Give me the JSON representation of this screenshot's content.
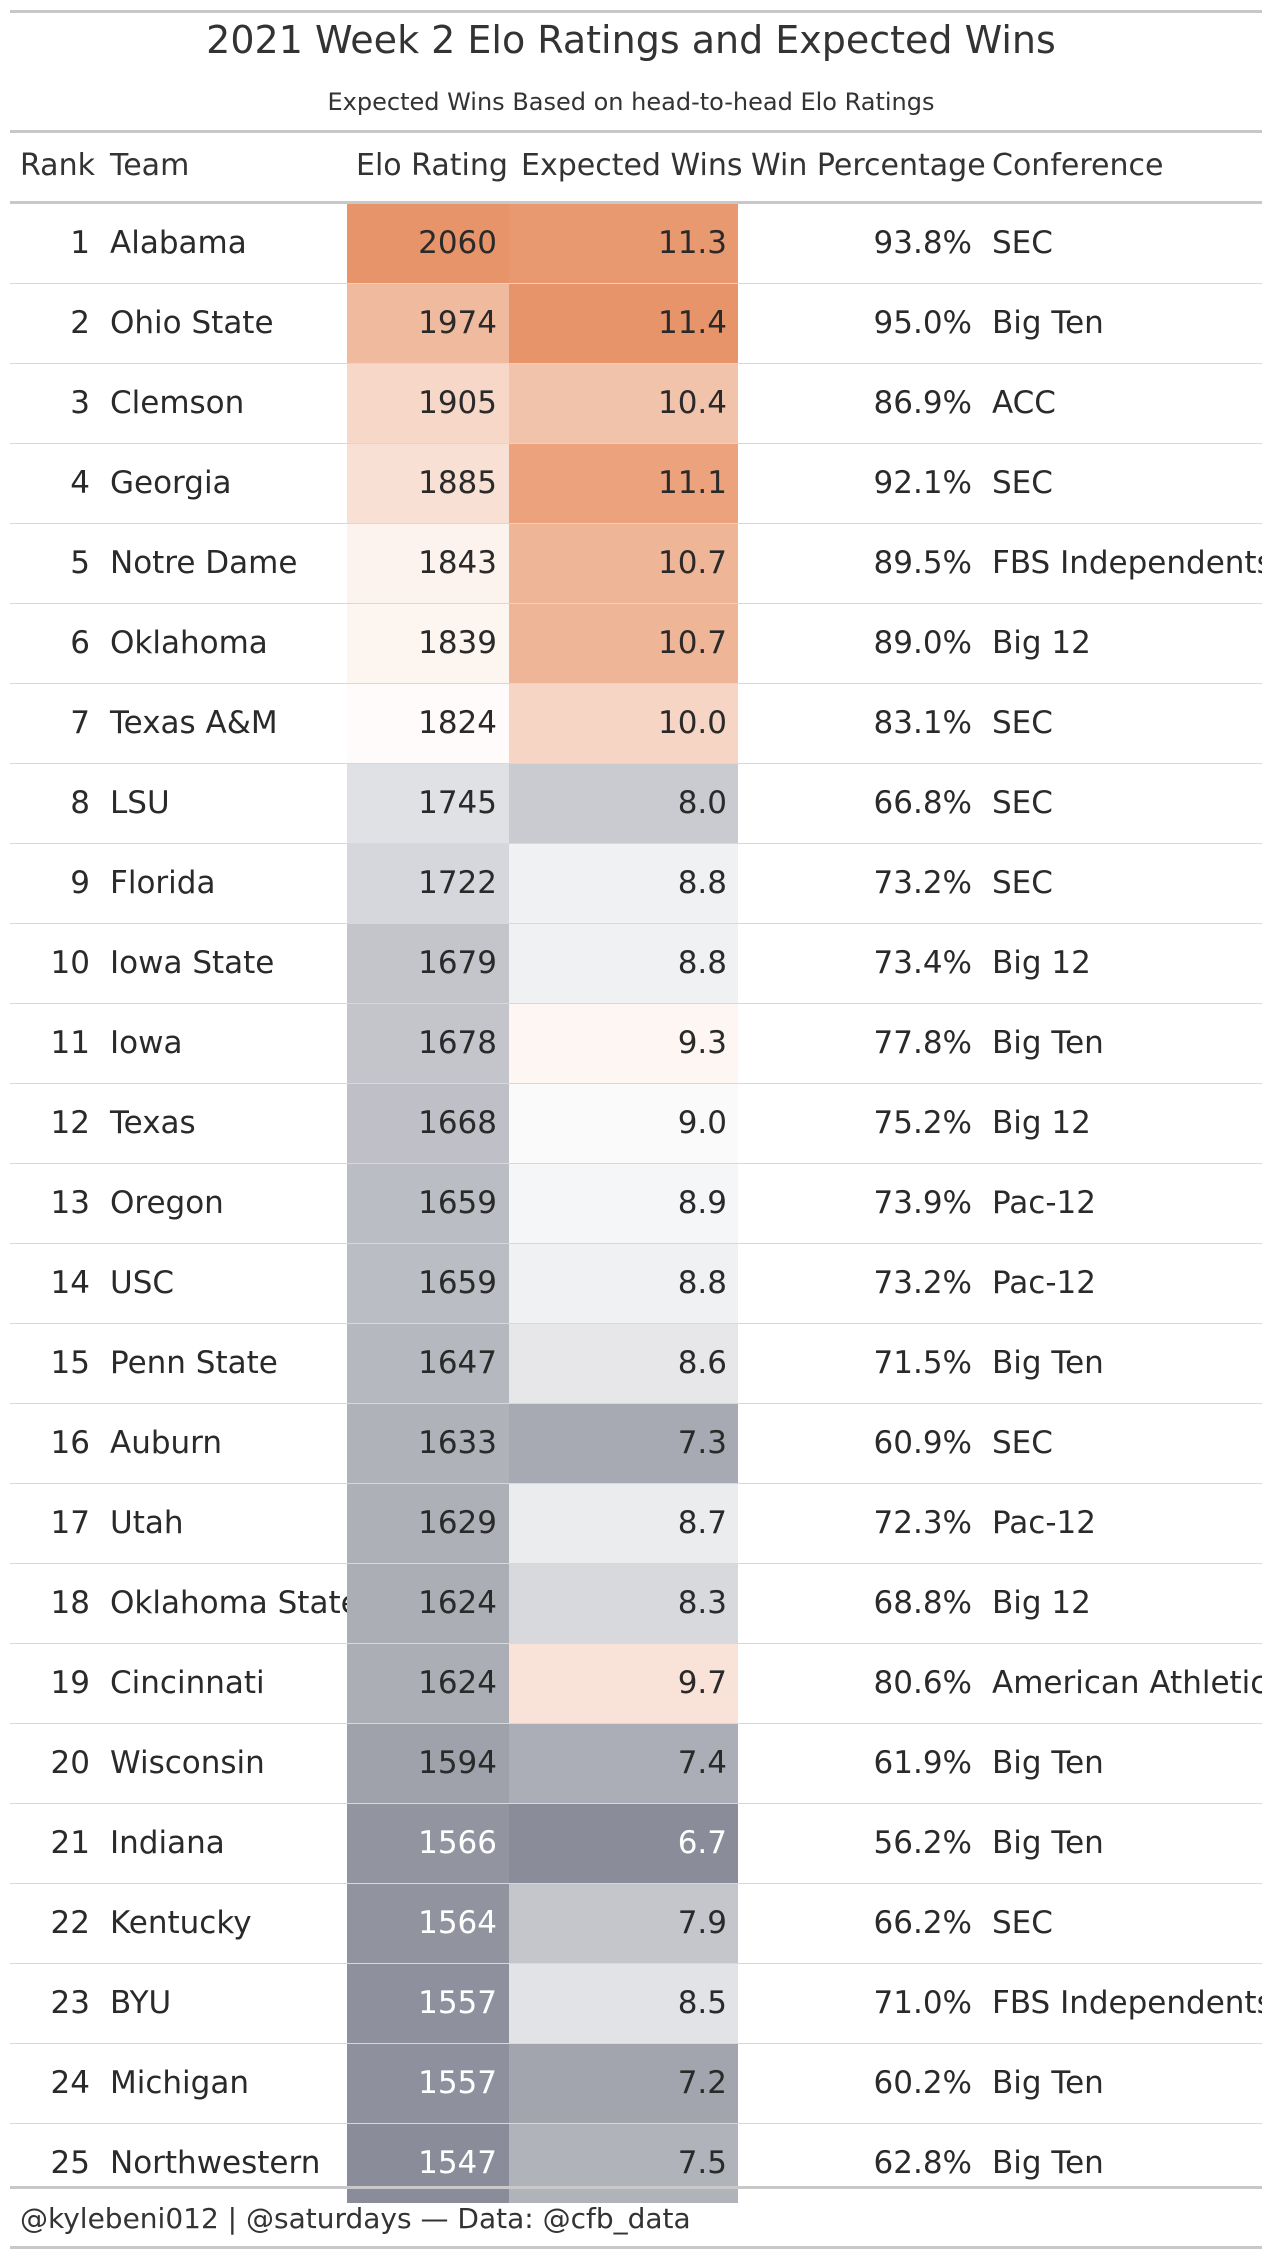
{
  "chart_data": {
    "type": "table",
    "title": "2021 Week 2 Elo Ratings and Expected Wins",
    "subtitle": "Expected Wins Based on head-to-head Elo Ratings",
    "columns": [
      "Rank",
      "Team",
      "Elo Rating",
      "Expected Wins",
      "Win Percentage",
      "Conference"
    ],
    "color_scale": {
      "low": "#8a8d99",
      "mid": "#ffffff",
      "high": "#e8946a",
      "elo_mid": 1815,
      "exp_mid": 9.1
    },
    "rows": [
      {
        "rank": "1",
        "team": "Alabama",
        "elo": 2060,
        "exp": 11.3,
        "exp_text": "11.3",
        "pct": "93.8%",
        "conf": "SEC"
      },
      {
        "rank": "2",
        "team": "Ohio State",
        "elo": 1974,
        "exp": 11.4,
        "exp_text": "11.4",
        "pct": "95.0%",
        "conf": "Big Ten"
      },
      {
        "rank": "3",
        "team": "Clemson",
        "elo": 1905,
        "exp": 10.4,
        "exp_text": "10.4",
        "pct": "86.9%",
        "conf": "ACC"
      },
      {
        "rank": "4",
        "team": "Georgia",
        "elo": 1885,
        "exp": 11.1,
        "exp_text": "11.1",
        "pct": "92.1%",
        "conf": "SEC"
      },
      {
        "rank": "5",
        "team": "Notre Dame",
        "elo": 1843,
        "exp": 10.7,
        "exp_text": "10.7",
        "pct": "89.5%",
        "conf": "FBS Independents"
      },
      {
        "rank": "6",
        "team": "Oklahoma",
        "elo": 1839,
        "exp": 10.7,
        "exp_text": "10.7",
        "pct": "89.0%",
        "conf": "Big 12"
      },
      {
        "rank": "7",
        "team": "Texas A&M",
        "elo": 1824,
        "exp": 10.0,
        "exp_text": "10.0",
        "pct": "83.1%",
        "conf": "SEC"
      },
      {
        "rank": "8",
        "team": "LSU",
        "elo": 1745,
        "exp": 8.0,
        "exp_text": "8.0",
        "pct": "66.8%",
        "conf": "SEC"
      },
      {
        "rank": "9",
        "team": "Florida",
        "elo": 1722,
        "exp": 8.8,
        "exp_text": "8.8",
        "pct": "73.2%",
        "conf": "SEC"
      },
      {
        "rank": "10",
        "team": "Iowa State",
        "elo": 1679,
        "exp": 8.8,
        "exp_text": "8.8",
        "pct": "73.4%",
        "conf": "Big 12"
      },
      {
        "rank": "11",
        "team": "Iowa",
        "elo": 1678,
        "exp": 9.3,
        "exp_text": "9.3",
        "pct": "77.8%",
        "conf": "Big Ten"
      },
      {
        "rank": "12",
        "team": "Texas",
        "elo": 1668,
        "exp": 9.0,
        "exp_text": "9.0",
        "pct": "75.2%",
        "conf": "Big 12"
      },
      {
        "rank": "13",
        "team": "Oregon",
        "elo": 1659,
        "exp": 8.9,
        "exp_text": "8.9",
        "pct": "73.9%",
        "conf": "Pac-12"
      },
      {
        "rank": "14",
        "team": "USC",
        "elo": 1659,
        "exp": 8.8,
        "exp_text": "8.8",
        "pct": "73.2%",
        "conf": "Pac-12"
      },
      {
        "rank": "15",
        "team": "Penn State",
        "elo": 1647,
        "exp": 8.6,
        "exp_text": "8.6",
        "pct": "71.5%",
        "conf": "Big Ten"
      },
      {
        "rank": "16",
        "team": "Auburn",
        "elo": 1633,
        "exp": 7.3,
        "exp_text": "7.3",
        "pct": "60.9%",
        "conf": "SEC"
      },
      {
        "rank": "17",
        "team": "Utah",
        "elo": 1629,
        "exp": 8.7,
        "exp_text": "8.7",
        "pct": "72.3%",
        "conf": "Pac-12"
      },
      {
        "rank": "18",
        "team": "Oklahoma State",
        "elo": 1624,
        "exp": 8.3,
        "exp_text": "8.3",
        "pct": "68.8%",
        "conf": "Big 12"
      },
      {
        "rank": "19",
        "team": "Cincinnati",
        "elo": 1624,
        "exp": 9.7,
        "exp_text": "9.7",
        "pct": "80.6%",
        "conf": "American Athletic"
      },
      {
        "rank": "20",
        "team": "Wisconsin",
        "elo": 1594,
        "exp": 7.4,
        "exp_text": "7.4",
        "pct": "61.9%",
        "conf": "Big Ten"
      },
      {
        "rank": "21",
        "team": "Indiana",
        "elo": 1566,
        "exp": 6.7,
        "exp_text": "6.7",
        "pct": "56.2%",
        "conf": "Big Ten"
      },
      {
        "rank": "22",
        "team": "Kentucky",
        "elo": 1564,
        "exp": 7.9,
        "exp_text": "7.9",
        "pct": "66.2%",
        "conf": "SEC"
      },
      {
        "rank": "23",
        "team": "BYU",
        "elo": 1557,
        "exp": 8.5,
        "exp_text": "8.5",
        "pct": "71.0%",
        "conf": "FBS Independents"
      },
      {
        "rank": "24",
        "team": "Michigan",
        "elo": 1557,
        "exp": 7.2,
        "exp_text": "7.2",
        "pct": "60.2%",
        "conf": "Big Ten"
      },
      {
        "rank": "25",
        "team": "Northwestern",
        "elo": 1547,
        "exp": 7.5,
        "exp_text": "7.5",
        "pct": "62.8%",
        "conf": "Big Ten"
      }
    ]
  },
  "footer": "@kylebeni012 | @saturdays — Data: @cfb_data"
}
